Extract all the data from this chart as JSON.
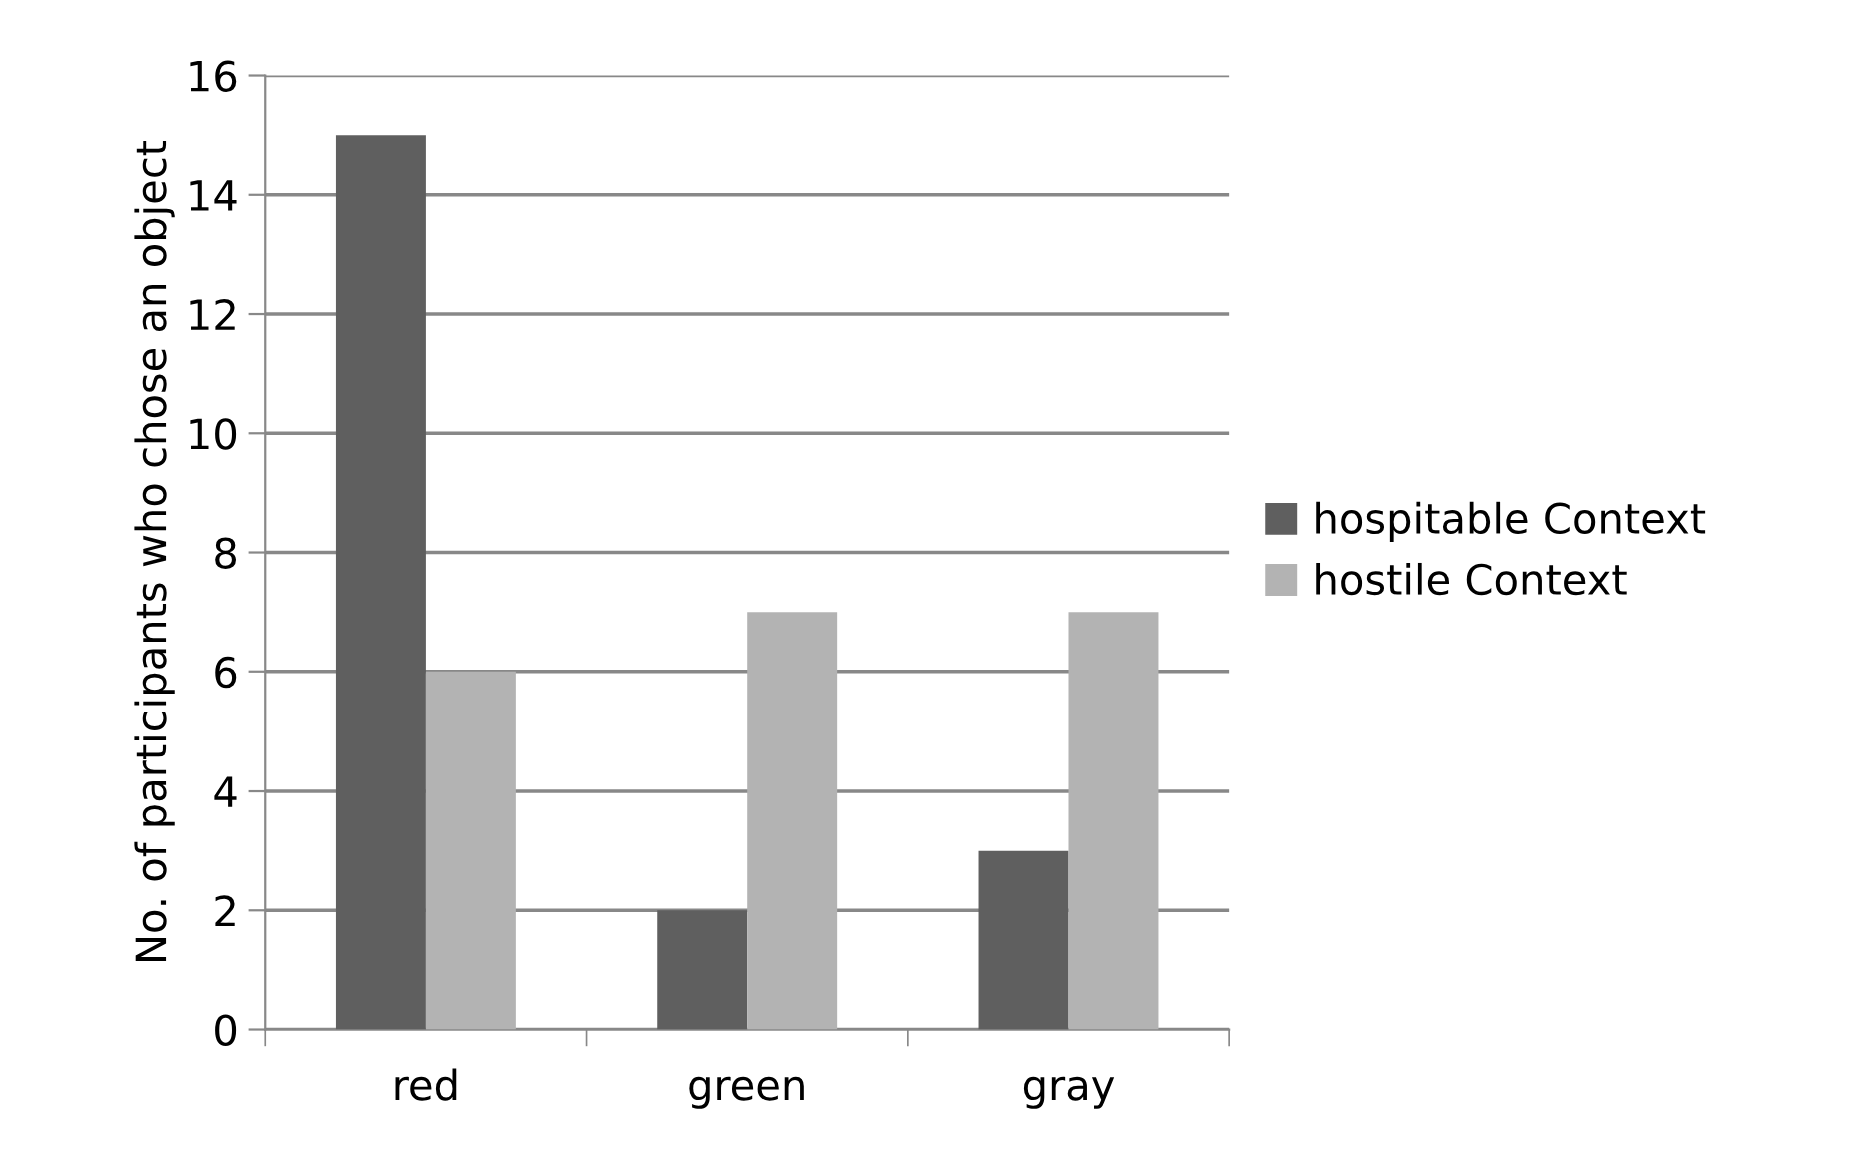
{
  "chart_data": {
    "type": "bar",
    "ylabel": "No. of participants who chose an object",
    "categories": [
      "red",
      "green",
      "gray"
    ],
    "series": [
      {
        "name": "hospitable Context",
        "color": "#5f5f5f",
        "values": [
          15,
          2,
          3
        ]
      },
      {
        "name": "hostile Context",
        "color": "#b3b3b3",
        "values": [
          6,
          7,
          7
        ]
      }
    ],
    "ylim": [
      0,
      16
    ],
    "yticks": [
      0,
      2,
      4,
      6,
      8,
      10,
      12,
      14,
      16
    ],
    "grid": "y",
    "legend": "right"
  }
}
